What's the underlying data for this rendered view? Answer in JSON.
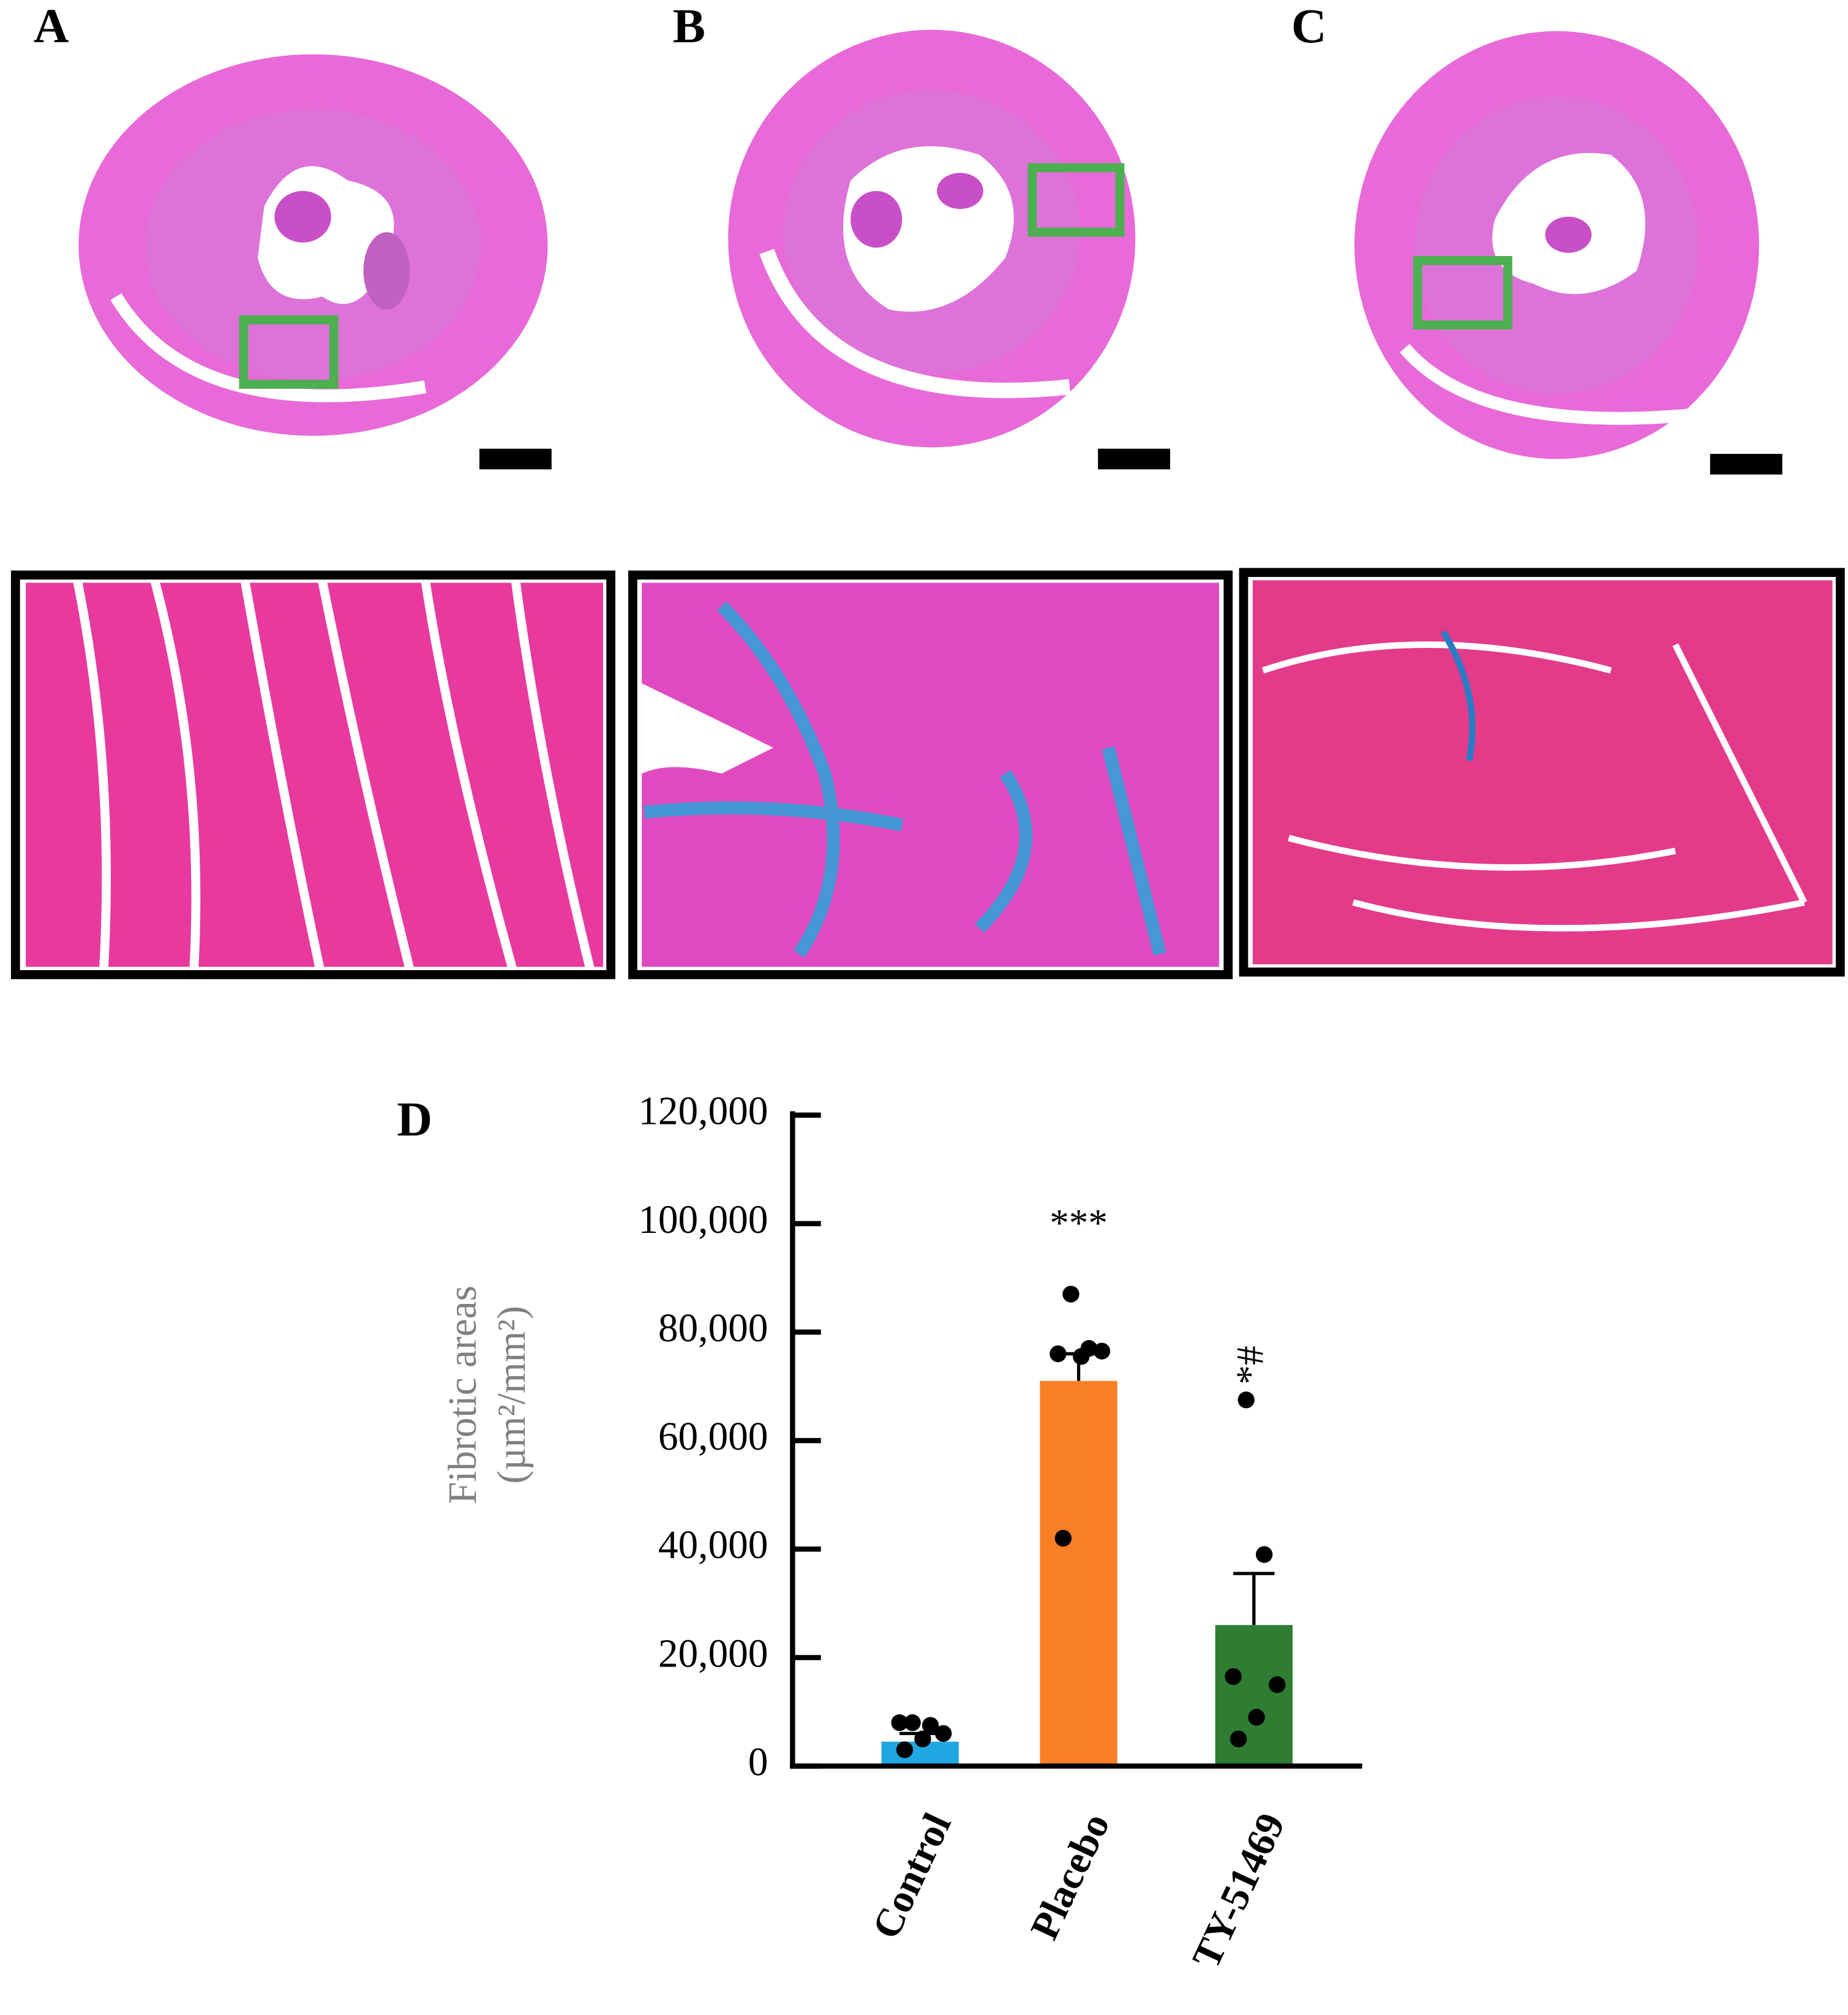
{
  "panels": [
    "A",
    "B",
    "C"
  ],
  "chart_data": {
    "type": "bar",
    "panel": "D",
    "ylabel": [
      "Fibrotic areas",
      "(µm²/mm²)"
    ],
    "categories": [
      "Control",
      "Placebo",
      "TY-51469"
    ],
    "values": [
      4500,
      71000,
      26000
    ],
    "errors": [
      1500,
      5000,
      9500
    ],
    "points": [
      [
        8000,
        7500,
        8000,
        6000,
        5000,
        3000
      ],
      [
        87000,
        77000,
        76000,
        76500,
        75500,
        42000
      ],
      [
        67500,
        39000,
        16500,
        15000,
        9000,
        5000
      ]
    ],
    "colors": [
      "#1ea7e1",
      "#f97f27",
      "#2e7d32"
    ],
    "annotations": [
      {
        "category": "Placebo",
        "text": "***"
      },
      {
        "category": "TY-51469",
        "text": "*#"
      }
    ],
    "ylim": [
      0,
      120000
    ],
    "yticks": [
      0,
      {
        "value": 20000,
        "label": "20,000"
      },
      {
        "value": 40000,
        "label": "40,000"
      },
      {
        "value": 60000,
        "label": "60,000"
      },
      {
        "value": 80000,
        "label": "80,000"
      },
      {
        "value": 100000,
        "label": "100,000"
      },
      {
        "value": 120000,
        "label": "120,000"
      }
    ]
  }
}
